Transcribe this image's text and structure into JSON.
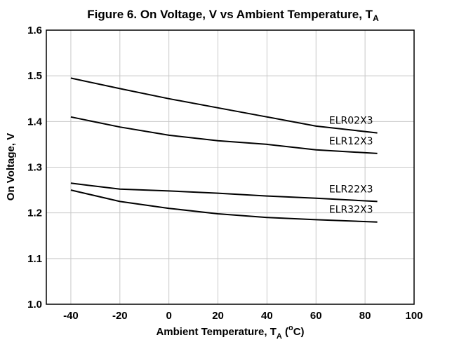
{
  "chart_data": {
    "type": "line",
    "title": "Figure 6. On Voltage, V vs Ambient Temperature, T",
    "title_subscript": "A",
    "xlabel": "Ambient Temperature, T",
    "xlabel_subscript": "A",
    "xlabel_unit_prefix": " (",
    "xlabel_unit_sup": "o",
    "xlabel_unit_suffix": "C)",
    "ylabel": "On Voltage, V",
    "xlim": [
      -50,
      100
    ],
    "ylim": [
      1.0,
      1.6
    ],
    "xticks": [
      -40,
      -20,
      0,
      20,
      40,
      60,
      80,
      100
    ],
    "xtick_labels": [
      "-40",
      "-20",
      "0",
      "20",
      "40",
      "60",
      "80",
      "100"
    ],
    "yticks": [
      1.0,
      1.1,
      1.2,
      1.3,
      1.4,
      1.5,
      1.6
    ],
    "ytick_labels": [
      "1.0",
      "1.1",
      "1.2",
      "1.3",
      "1.4",
      "1.5",
      "1.6"
    ],
    "grid": true,
    "x": [
      -40,
      -20,
      0,
      20,
      40,
      60,
      85
    ],
    "series": [
      {
        "name": "ELR02X3",
        "values": [
          1.495,
          1.472,
          1.45,
          1.43,
          1.41,
          1.39,
          1.375
        ]
      },
      {
        "name": "ELR12X3",
        "values": [
          1.41,
          1.388,
          1.37,
          1.358,
          1.35,
          1.338,
          1.33
        ]
      },
      {
        "name": "ELR22X3",
        "values": [
          1.265,
          1.252,
          1.248,
          1.243,
          1.237,
          1.232,
          1.225
        ]
      },
      {
        "name": "ELR32X3",
        "values": [
          1.25,
          1.225,
          1.21,
          1.198,
          1.19,
          1.185,
          1.18
        ]
      }
    ]
  }
}
